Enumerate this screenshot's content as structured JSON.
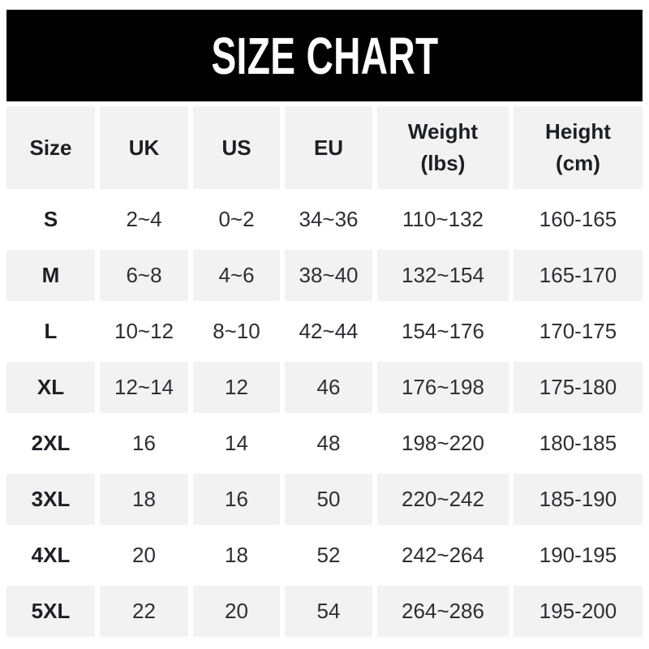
{
  "banner": {
    "title": "SIZE CHART",
    "bg_color": "#010101",
    "text_color": "#ffffff"
  },
  "header": {
    "size": "Size",
    "uk": "UK",
    "us": "US",
    "eu": "EU",
    "weight": "Weight\n(lbs)",
    "height": "Height\n(cm)"
  },
  "chart_data": {
    "type": "table",
    "title": "SIZE CHART",
    "columns": [
      "Size",
      "UK",
      "US",
      "EU",
      "Weight (lbs)",
      "Height (cm)"
    ],
    "rows": [
      [
        "S",
        "2~4",
        "0~2",
        "34~36",
        "110~132",
        "160-165"
      ],
      [
        "M",
        "6~8",
        "4~6",
        "38~40",
        "132~154",
        "165-170"
      ],
      [
        "L",
        "10~12",
        "8~10",
        "42~44",
        "154~176",
        "170-175"
      ],
      [
        "XL",
        "12~14",
        "12",
        "46",
        "176~198",
        "175-180"
      ],
      [
        "2XL",
        "16",
        "14",
        "48",
        "198~220",
        "180-185"
      ],
      [
        "3XL",
        "18",
        "16",
        "50",
        "220~242",
        "185-190"
      ],
      [
        "4XL",
        "20",
        "18",
        "52",
        "242~264",
        "190-195"
      ],
      [
        "5XL",
        "22",
        "20",
        "54",
        "264~286",
        "195-200"
      ]
    ],
    "layout": {
      "header_bg": "#f2f2f2",
      "alt_row_bg": "#f2f2f2",
      "row_bg": "#ffffff",
      "gutter_color": "#ffffff",
      "header_text_color": "#1e1f24",
      "body_text_color": "#2e2f34"
    }
  }
}
